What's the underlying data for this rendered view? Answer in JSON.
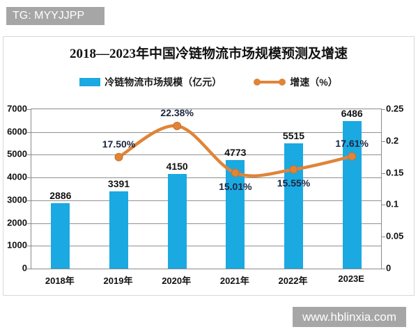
{
  "watermarks": {
    "top": "TG: MYYJJPP",
    "bottom": "www.hblinxia.com"
  },
  "colors": {
    "bar_blue": "#1BA9E1",
    "line_orange": "#E08438",
    "grid_gray": "#909090",
    "axis_gray": "#8a8a8a",
    "frame_border": "#d8d8d8",
    "watermark_bg": "#a6a6a6",
    "text_black": "#111111"
  },
  "chart_data": {
    "type": "bar",
    "combo": "bar+line",
    "title": "2018—2023年中国冷链物流市场规模预测及增速",
    "categories": [
      "2018年",
      "2019年",
      "2020年",
      "2021年",
      "2022年",
      "2023E"
    ],
    "series": [
      {
        "name": "冷链物流市场规模（亿元）",
        "type": "bar",
        "axis": "left",
        "color": "#1BA9E1",
        "values": [
          2886,
          3391,
          4150,
          4773,
          5515,
          6486
        ],
        "labels": [
          "2886",
          "3391",
          "4150",
          "4773",
          "5515",
          "6486"
        ]
      },
      {
        "name": "增速（%）",
        "type": "line",
        "axis": "right",
        "color": "#E08438",
        "values": [
          null,
          0.175,
          0.2238,
          0.1501,
          0.1555,
          0.1761
        ],
        "labels": [
          "",
          "17.50%",
          "22.38%",
          "15.01%",
          "15.55%",
          "17.61%"
        ],
        "label_pos": [
          "",
          "above",
          "above",
          "below",
          "below",
          "above"
        ]
      }
    ],
    "left_axis": {
      "min": 0,
      "max": 7000,
      "ticks": [
        0,
        1000,
        2000,
        3000,
        4000,
        5000,
        6000,
        7000
      ],
      "tick_labels": [
        "0",
        "1000",
        "2000",
        "3000",
        "4000",
        "5000",
        "6000",
        "7000"
      ]
    },
    "right_axis": {
      "min": 0,
      "max": 0.25,
      "ticks": [
        0,
        0.05,
        0.1,
        0.15,
        0.2,
        0.25
      ],
      "tick_labels": [
        "0",
        "0.05",
        "0.1",
        "0.15",
        "0.2",
        "0.25"
      ]
    },
    "grid": true,
    "legend_position": "top"
  }
}
